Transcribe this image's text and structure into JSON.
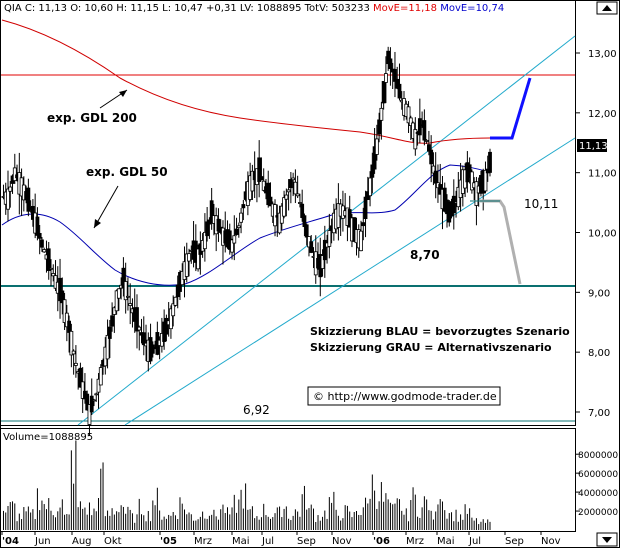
{
  "header": {
    "symbol": "QIA",
    "quote": "C: 11,13 O: 10,60 H: 11,15 L: 10,47 +0,31 LV: 1088895 TotV: 503233",
    "mov_e1_label": "MovE=11,18",
    "mov_e2_label": "MovE=10,74",
    "mov_e1_color": "#e00000",
    "mov_e2_color": "#0000cc"
  },
  "annotations": {
    "gdl200": "exp. GDL 200",
    "gdl50": "exp. GDL 50",
    "target_low": "8,70",
    "level_10_11": "10,11",
    "level_6_92": "6,92",
    "legend_blue": "Skizzierung BLAU = bevorzugtes Szenario",
    "legend_grey": "Skizzierung GRAU = Alternativszenario",
    "copyright": "© http://www.godmode-trader.de",
    "last_price_tag": "11,13"
  },
  "volume_panel": {
    "label": "Volume=1088895"
  },
  "colors": {
    "candle": "#000000",
    "ma200": "#d00000",
    "ma50": "#0000b0",
    "trend_lines": "#22aacc",
    "support": "#0a7070",
    "scenario_blue": "#1010ff",
    "scenario_grey": "#b0b0b0",
    "hline_red": "#e00000",
    "volume": "#000000"
  },
  "chart_data": {
    "type": "candlestick",
    "title": "QIA",
    "price_axis": {
      "ticks": [
        "7,00",
        "8,00",
        "9,00",
        "10,00",
        "11,00",
        "12,00",
        "13,00"
      ],
      "range": [
        6.8,
        13.4
      ]
    },
    "volume_axis": {
      "ticks": [
        "2000000",
        "4000000",
        "6000000",
        "8000000"
      ],
      "range": [
        0,
        9500000
      ]
    },
    "time_ticks": [
      "'04",
      "Jun",
      "Aug",
      "Okt",
      "'05",
      "Mrz",
      "Mai",
      "Jul",
      "Sep",
      "Nov",
      "'06",
      "Mrz",
      "Mai",
      "Jul",
      "Sep",
      "Nov"
    ],
    "levels": {
      "red_horizontal": 12.5,
      "teal_support": 8.75,
      "bottom_line": 6.92,
      "note_10_11": 10.11
    },
    "close_series_approx": [
      10.6,
      11.0,
      10.8,
      10.5,
      10.2,
      9.8,
      9.5,
      9.2,
      8.9,
      8.4,
      7.8,
      7.4,
      7.0,
      7.3,
      7.8,
      8.3,
      8.9,
      9.2,
      8.8,
      8.5,
      8.2,
      8.0,
      8.1,
      8.3,
      8.6,
      9.0,
      9.4,
      9.7,
      9.6,
      9.9,
      10.3,
      10.1,
      9.9,
      9.8,
      10.1,
      10.6,
      10.9,
      11.0,
      10.7,
      10.4,
      10.2,
      10.6,
      10.9,
      10.5,
      10.0,
      9.6,
      9.4,
      9.8,
      10.2,
      10.4,
      10.3,
      10.0,
      9.9,
      10.6,
      11.2,
      12.0,
      12.9,
      12.6,
      12.2,
      12.0,
      11.6,
      11.8,
      11.4,
      10.9,
      10.6,
      10.3,
      10.5,
      10.9,
      11.0,
      10.7,
      10.8,
      11.13
    ],
    "volume_series_approx": [
      2.5,
      3.0,
      1.8,
      2.2,
      2.0,
      4.5,
      3.2,
      2.4,
      3.6,
      1.7,
      9.0,
      3.0,
      2.8,
      2.4,
      6.5,
      2.0,
      2.6,
      3.3,
      2.2,
      1.6,
      2.9,
      2.0,
      4.0,
      2.1,
      1.8,
      2.4,
      3.5,
      2.0,
      1.6,
      2.2,
      2.5,
      1.9,
      2.8,
      2.1,
      3.4,
      4.6,
      2.3,
      1.8,
      2.6,
      2.0,
      2.2,
      3.0,
      1.9,
      2.4,
      4.2,
      2.6,
      1.8,
      2.2,
      3.6,
      2.0,
      2.4,
      1.9,
      2.6,
      3.2,
      6.0,
      4.8,
      3.8,
      2.6,
      3.3,
      2.0,
      4.1,
      2.8,
      3.6,
      1.8,
      5.4,
      2.6,
      2.0,
      1.8,
      2.4,
      1.2,
      1.0,
      1.0
    ]
  }
}
